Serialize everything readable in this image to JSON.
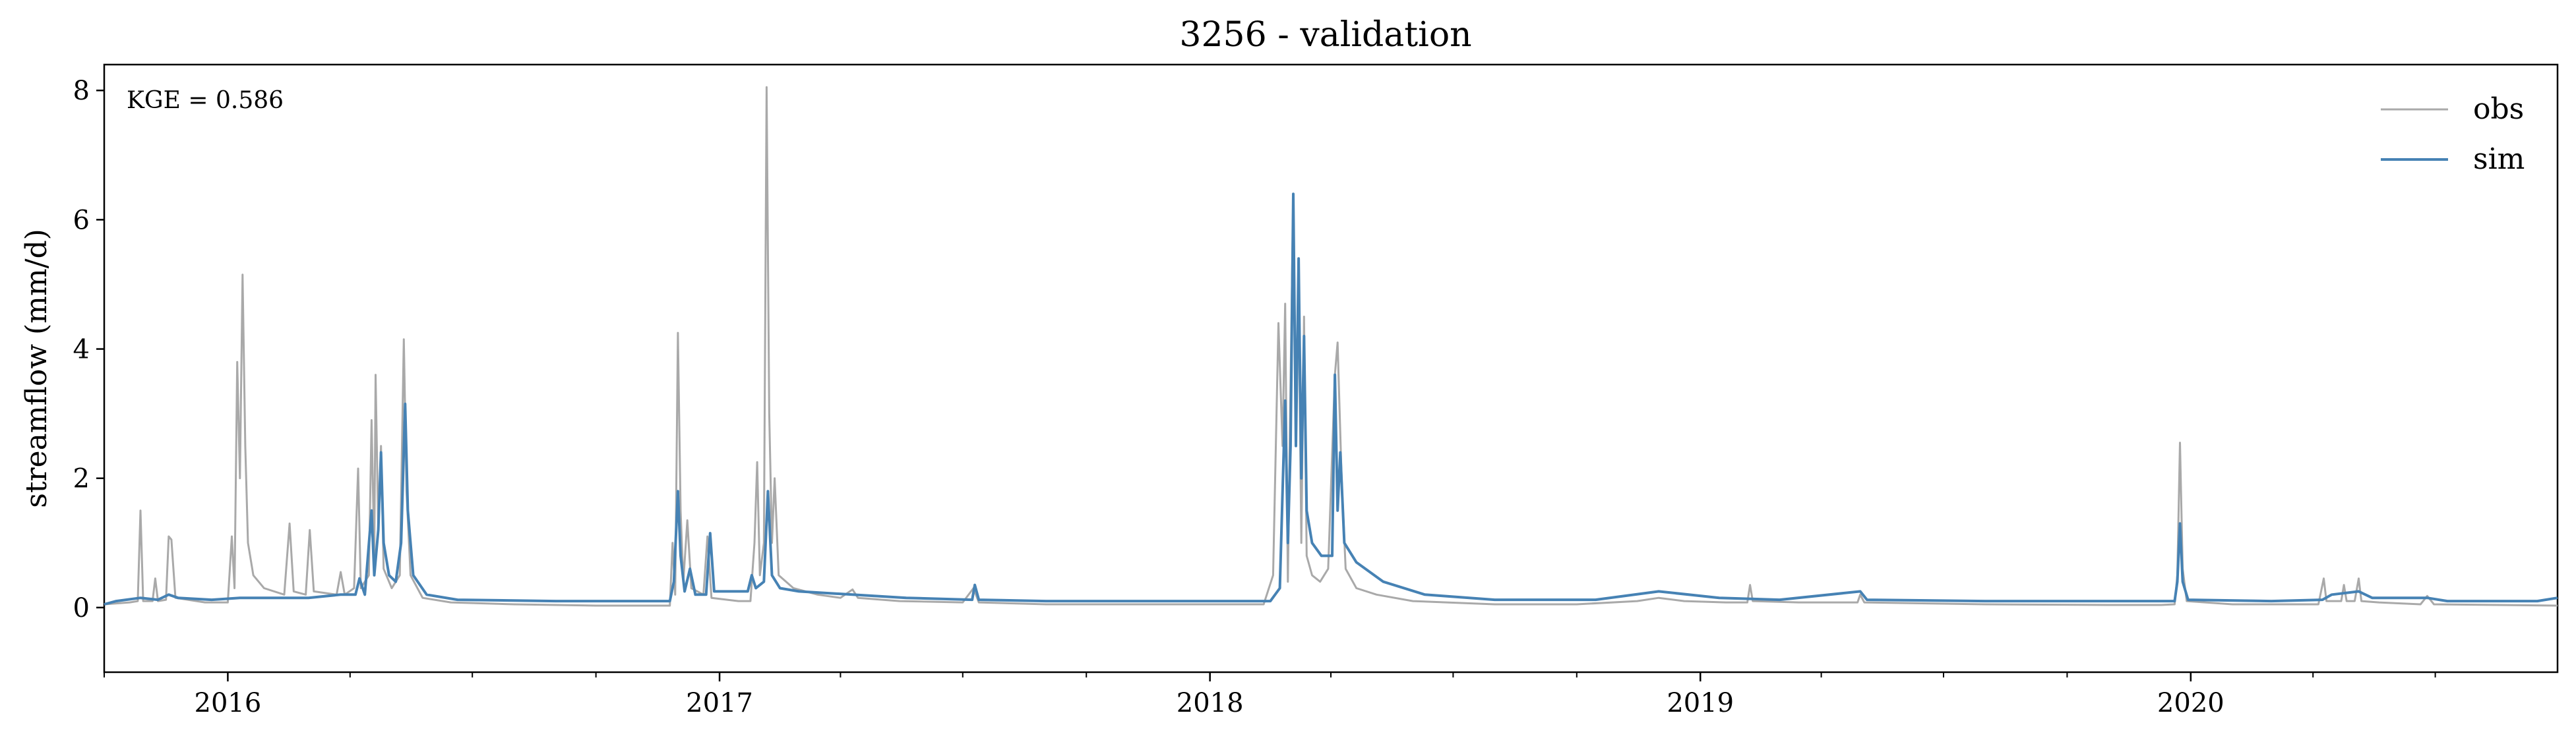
{
  "chart_data": {
    "type": "line",
    "title": "3256 - validation",
    "xlabel": "",
    "ylabel": "streamflow (mm/d)",
    "ylim": [
      -1,
      8.4
    ],
    "yticks": [
      0,
      2,
      4,
      6,
      8
    ],
    "xlim": [
      "2015-10-01",
      "2020-09-30"
    ],
    "xticks": [
      {
        "label": "2016",
        "date": "2016-01-01"
      },
      {
        "label": "2017",
        "date": "2017-01-01"
      },
      {
        "label": "2018",
        "date": "2018-01-01"
      },
      {
        "label": "2019",
        "date": "2019-01-01"
      },
      {
        "label": "2020",
        "date": "2020-01-01"
      }
    ],
    "annotation": "KGE = 0.586",
    "legend_position": "top-right",
    "grid": false,
    "series": [
      {
        "name": "obs",
        "color": "#a9a9a9",
        "points": [
          [
            "2015-10-01",
            0.05
          ],
          [
            "2015-10-20",
            0.08
          ],
          [
            "2015-10-26",
            0.1
          ],
          [
            "2015-10-28",
            1.5
          ],
          [
            "2015-10-30",
            0.1
          ],
          [
            "2015-11-06",
            0.1
          ],
          [
            "2015-11-08",
            0.45
          ],
          [
            "2015-11-10",
            0.1
          ],
          [
            "2015-11-16",
            0.12
          ],
          [
            "2015-11-18",
            1.1
          ],
          [
            "2015-11-20",
            1.05
          ],
          [
            "2015-11-23",
            0.15
          ],
          [
            "2015-12-15",
            0.08
          ],
          [
            "2016-01-01",
            0.08
          ],
          [
            "2016-01-04",
            1.1
          ],
          [
            "2016-01-06",
            0.3
          ],
          [
            "2016-01-08",
            3.8
          ],
          [
            "2016-01-10",
            2.0
          ],
          [
            "2016-01-12",
            5.15
          ],
          [
            "2016-01-14",
            2.5
          ],
          [
            "2016-01-16",
            1.0
          ],
          [
            "2016-01-20",
            0.5
          ],
          [
            "2016-01-28",
            0.3
          ],
          [
            "2016-02-12",
            0.2
          ],
          [
            "2016-02-16",
            1.3
          ],
          [
            "2016-02-19",
            0.25
          ],
          [
            "2016-02-28",
            0.2
          ],
          [
            "2016-03-02",
            1.2
          ],
          [
            "2016-03-05",
            0.25
          ],
          [
            "2016-03-22",
            0.2
          ],
          [
            "2016-03-25",
            0.55
          ],
          [
            "2016-03-28",
            0.2
          ],
          [
            "2016-04-04",
            0.3
          ],
          [
            "2016-04-07",
            2.15
          ],
          [
            "2016-04-09",
            0.3
          ],
          [
            "2016-04-15",
            0.5
          ],
          [
            "2016-04-17",
            2.9
          ],
          [
            "2016-04-19",
            0.8
          ],
          [
            "2016-04-20",
            3.6
          ],
          [
            "2016-04-22",
            1.2
          ],
          [
            "2016-04-24",
            2.5
          ],
          [
            "2016-04-26",
            0.6
          ],
          [
            "2016-05-02",
            0.3
          ],
          [
            "2016-05-08",
            0.5
          ],
          [
            "2016-05-11",
            4.15
          ],
          [
            "2016-05-13",
            1.8
          ],
          [
            "2016-05-16",
            0.5
          ],
          [
            "2016-05-25",
            0.15
          ],
          [
            "2016-06-15",
            0.08
          ],
          [
            "2016-08-01",
            0.05
          ],
          [
            "2016-10-01",
            0.03
          ],
          [
            "2016-11-25",
            0.03
          ],
          [
            "2016-11-27",
            1.0
          ],
          [
            "2016-11-29",
            0.2
          ],
          [
            "2016-12-01",
            4.25
          ],
          [
            "2016-12-03",
            1.5
          ],
          [
            "2016-12-05",
            0.4
          ],
          [
            "2016-12-08",
            1.35
          ],
          [
            "2016-12-11",
            0.3
          ],
          [
            "2016-12-20",
            0.2
          ],
          [
            "2016-12-23",
            1.1
          ],
          [
            "2016-12-26",
            0.15
          ],
          [
            "2017-01-15",
            0.1
          ],
          [
            "2017-01-24",
            0.1
          ],
          [
            "2017-01-27",
            1.0
          ],
          [
            "2017-01-29",
            2.25
          ],
          [
            "2017-01-31",
            0.5
          ],
          [
            "2017-02-03",
            1.0
          ],
          [
            "2017-02-05",
            8.05
          ],
          [
            "2017-02-07",
            3.0
          ],
          [
            "2017-02-09",
            1.0
          ],
          [
            "2017-02-11",
            2.0
          ],
          [
            "2017-02-14",
            0.5
          ],
          [
            "2017-02-25",
            0.3
          ],
          [
            "2017-03-15",
            0.2
          ],
          [
            "2017-04-01",
            0.15
          ],
          [
            "2017-04-10",
            0.28
          ],
          [
            "2017-04-14",
            0.15
          ],
          [
            "2017-05-15",
            0.1
          ],
          [
            "2017-07-01",
            0.08
          ],
          [
            "2017-07-09",
            0.3
          ],
          [
            "2017-07-13",
            0.08
          ],
          [
            "2017-09-01",
            0.05
          ],
          [
            "2017-12-01",
            0.05
          ],
          [
            "2018-02-10",
            0.05
          ],
          [
            "2018-02-17",
            0.5
          ],
          [
            "2018-02-21",
            4.4
          ],
          [
            "2018-02-24",
            2.5
          ],
          [
            "2018-02-26",
            4.7
          ],
          [
            "2018-02-28",
            0.4
          ],
          [
            "2018-03-02",
            3.5
          ],
          [
            "2018-03-04",
            6.4
          ],
          [
            "2018-03-06",
            3.0
          ],
          [
            "2018-03-08",
            4.8
          ],
          [
            "2018-03-10",
            1.0
          ],
          [
            "2018-03-12",
            4.5
          ],
          [
            "2018-03-14",
            0.8
          ],
          [
            "2018-03-18",
            0.5
          ],
          [
            "2018-03-24",
            0.4
          ],
          [
            "2018-03-30",
            0.6
          ],
          [
            "2018-04-04",
            3.6
          ],
          [
            "2018-04-06",
            4.1
          ],
          [
            "2018-04-09",
            2.0
          ],
          [
            "2018-04-12",
            0.6
          ],
          [
            "2018-04-20",
            0.3
          ],
          [
            "2018-05-05",
            0.2
          ],
          [
            "2018-06-01",
            0.1
          ],
          [
            "2018-08-01",
            0.05
          ],
          [
            "2018-10-01",
            0.05
          ],
          [
            "2018-11-15",
            0.1
          ],
          [
            "2018-12-01",
            0.15
          ],
          [
            "2018-12-20",
            0.1
          ],
          [
            "2019-01-20",
            0.08
          ],
          [
            "2019-02-05",
            0.08
          ],
          [
            "2019-02-07",
            0.35
          ],
          [
            "2019-02-09",
            0.1
          ],
          [
            "2019-03-15",
            0.08
          ],
          [
            "2019-04-28",
            0.08
          ],
          [
            "2019-04-30",
            0.2
          ],
          [
            "2019-05-03",
            0.08
          ],
          [
            "2019-08-01",
            0.05
          ],
          [
            "2019-11-01",
            0.04
          ],
          [
            "2019-12-10",
            0.04
          ],
          [
            "2019-12-20",
            0.05
          ],
          [
            "2019-12-22",
            0.5
          ],
          [
            "2019-12-24",
            2.55
          ],
          [
            "2019-12-26",
            0.6
          ],
          [
            "2019-12-29",
            0.1
          ],
          [
            "2020-02-01",
            0.05
          ],
          [
            "2020-03-01",
            0.05
          ],
          [
            "2020-04-05",
            0.05
          ],
          [
            "2020-04-09",
            0.45
          ],
          [
            "2020-04-11",
            0.1
          ],
          [
            "2020-04-22",
            0.1
          ],
          [
            "2020-04-24",
            0.35
          ],
          [
            "2020-04-26",
            0.1
          ],
          [
            "2020-05-02",
            0.1
          ],
          [
            "2020-05-05",
            0.45
          ],
          [
            "2020-05-07",
            0.1
          ],
          [
            "2020-05-20",
            0.08
          ],
          [
            "2020-06-20",
            0.05
          ],
          [
            "2020-06-25",
            0.18
          ],
          [
            "2020-06-30",
            0.05
          ],
          [
            "2020-09-30",
            0.03
          ]
        ]
      },
      {
        "name": "sim",
        "color": "#4682b4",
        "points": [
          [
            "2015-10-01",
            0.05
          ],
          [
            "2015-10-10",
            0.1
          ],
          [
            "2015-10-28",
            0.15
          ],
          [
            "2015-11-10",
            0.12
          ],
          [
            "2015-11-18",
            0.2
          ],
          [
            "2015-11-25",
            0.15
          ],
          [
            "2015-12-20",
            0.12
          ],
          [
            "2016-01-10",
            0.15
          ],
          [
            "2016-02-01",
            0.15
          ],
          [
            "2016-03-01",
            0.15
          ],
          [
            "2016-03-25",
            0.2
          ],
          [
            "2016-04-05",
            0.2
          ],
          [
            "2016-04-08",
            0.45
          ],
          [
            "2016-04-12",
            0.2
          ],
          [
            "2016-04-17",
            1.5
          ],
          [
            "2016-04-19",
            0.5
          ],
          [
            "2016-04-22",
            1.2
          ],
          [
            "2016-04-24",
            2.4
          ],
          [
            "2016-04-26",
            1.0
          ],
          [
            "2016-04-30",
            0.5
          ],
          [
            "2016-05-05",
            0.4
          ],
          [
            "2016-05-09",
            1.0
          ],
          [
            "2016-05-12",
            3.15
          ],
          [
            "2016-05-14",
            1.5
          ],
          [
            "2016-05-18",
            0.5
          ],
          [
            "2016-05-28",
            0.2
          ],
          [
            "2016-06-20",
            0.12
          ],
          [
            "2016-09-01",
            0.1
          ],
          [
            "2016-11-25",
            0.1
          ],
          [
            "2016-11-28",
            0.4
          ],
          [
            "2016-12-01",
            1.8
          ],
          [
            "2016-12-03",
            0.8
          ],
          [
            "2016-12-06",
            0.25
          ],
          [
            "2016-12-10",
            0.6
          ],
          [
            "2016-12-14",
            0.2
          ],
          [
            "2016-12-22",
            0.2
          ],
          [
            "2016-12-25",
            1.15
          ],
          [
            "2016-12-28",
            0.25
          ],
          [
            "2017-01-15",
            0.25
          ],
          [
            "2017-01-22",
            0.25
          ],
          [
            "2017-01-25",
            0.5
          ],
          [
            "2017-01-28",
            0.3
          ],
          [
            "2017-02-03",
            0.4
          ],
          [
            "2017-02-06",
            1.8
          ],
          [
            "2017-02-09",
            0.5
          ],
          [
            "2017-02-15",
            0.3
          ],
          [
            "2017-03-01",
            0.25
          ],
          [
            "2017-04-10",
            0.2
          ],
          [
            "2017-05-20",
            0.15
          ],
          [
            "2017-07-08",
            0.12
          ],
          [
            "2017-07-10",
            0.35
          ],
          [
            "2017-07-13",
            0.12
          ],
          [
            "2017-09-01",
            0.1
          ],
          [
            "2017-12-01",
            0.1
          ],
          [
            "2018-02-15",
            0.1
          ],
          [
            "2018-02-22",
            0.3
          ],
          [
            "2018-02-26",
            3.2
          ],
          [
            "2018-02-28",
            1.0
          ],
          [
            "2018-03-02",
            2.5
          ],
          [
            "2018-03-04",
            6.4
          ],
          [
            "2018-03-06",
            2.5
          ],
          [
            "2018-03-08",
            5.4
          ],
          [
            "2018-03-10",
            2.0
          ],
          [
            "2018-03-12",
            4.2
          ],
          [
            "2018-03-14",
            1.5
          ],
          [
            "2018-03-18",
            1.0
          ],
          [
            "2018-03-25",
            0.8
          ],
          [
            "2018-04-02",
            0.8
          ],
          [
            "2018-04-04",
            3.6
          ],
          [
            "2018-04-06",
            1.5
          ],
          [
            "2018-04-08",
            2.4
          ],
          [
            "2018-04-11",
            1.0
          ],
          [
            "2018-04-20",
            0.7
          ],
          [
            "2018-05-10",
            0.4
          ],
          [
            "2018-06-10",
            0.2
          ],
          [
            "2018-08-01",
            0.12
          ],
          [
            "2018-10-15",
            0.12
          ],
          [
            "2018-12-01",
            0.25
          ],
          [
            "2019-01-15",
            0.15
          ],
          [
            "2019-03-01",
            0.12
          ],
          [
            "2019-04-30",
            0.25
          ],
          [
            "2019-05-05",
            0.12
          ],
          [
            "2019-08-01",
            0.1
          ],
          [
            "2019-11-01",
            0.1
          ],
          [
            "2019-12-20",
            0.1
          ],
          [
            "2019-12-22",
            0.4
          ],
          [
            "2019-12-24",
            1.3
          ],
          [
            "2019-12-26",
            0.4
          ],
          [
            "2019-12-30",
            0.12
          ],
          [
            "2020-03-01",
            0.1
          ],
          [
            "2020-04-08",
            0.12
          ],
          [
            "2020-04-15",
            0.2
          ],
          [
            "2020-05-05",
            0.25
          ],
          [
            "2020-05-15",
            0.15
          ],
          [
            "2020-06-25",
            0.15
          ],
          [
            "2020-07-10",
            0.1
          ],
          [
            "2020-09-15",
            0.1
          ],
          [
            "2020-09-30",
            0.15
          ]
        ]
      }
    ]
  }
}
